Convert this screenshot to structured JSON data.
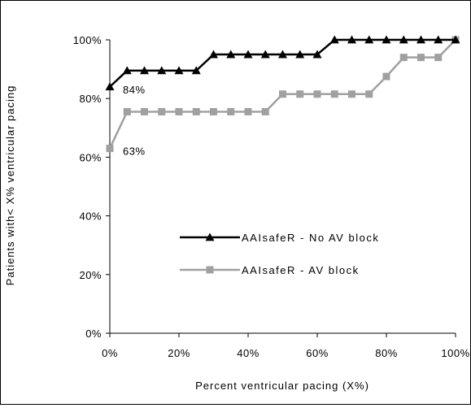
{
  "chart_data": {
    "type": "line",
    "title": "",
    "xlabel": "Percent ventricular pacing (X%)",
    "ylabel": "Patients with< X% ventricular pacing",
    "xlim": [
      0,
      100
    ],
    "ylim": [
      0,
      100
    ],
    "x_ticks": [
      "0%",
      "20%",
      "40%",
      "60%",
      "80%",
      "100%"
    ],
    "y_ticks": [
      "0%",
      "20%",
      "40%",
      "60%",
      "80%",
      "100%"
    ],
    "grid": false,
    "legend_position": "center-left",
    "x": [
      0,
      5,
      10,
      15,
      20,
      25,
      30,
      35,
      40,
      45,
      50,
      55,
      60,
      65,
      70,
      75,
      80,
      85,
      90,
      95,
      100
    ],
    "series": [
      {
        "name": "AAIsafeR - No AV block",
        "color": "#000000",
        "marker": "triangle",
        "values": [
          84,
          89.5,
          89.5,
          89.5,
          89.5,
          89.5,
          95,
          95,
          95,
          95,
          95,
          95,
          95,
          100,
          100,
          100,
          100,
          100,
          100,
          100,
          100
        ]
      },
      {
        "name": "AAIsafeR - AV block",
        "color": "#a0a0a0",
        "marker": "square",
        "values": [
          63,
          75.5,
          75.5,
          75.5,
          75.5,
          75.5,
          75.5,
          75.5,
          75.5,
          75.5,
          81.5,
          81.5,
          81.5,
          81.5,
          81.5,
          81.5,
          87.5,
          94,
          94,
          94,
          100
        ]
      }
    ],
    "annotations": [
      {
        "text": "84%",
        "x": 0,
        "y": 84
      },
      {
        "text": "63%",
        "x": 0,
        "y": 63
      }
    ]
  }
}
